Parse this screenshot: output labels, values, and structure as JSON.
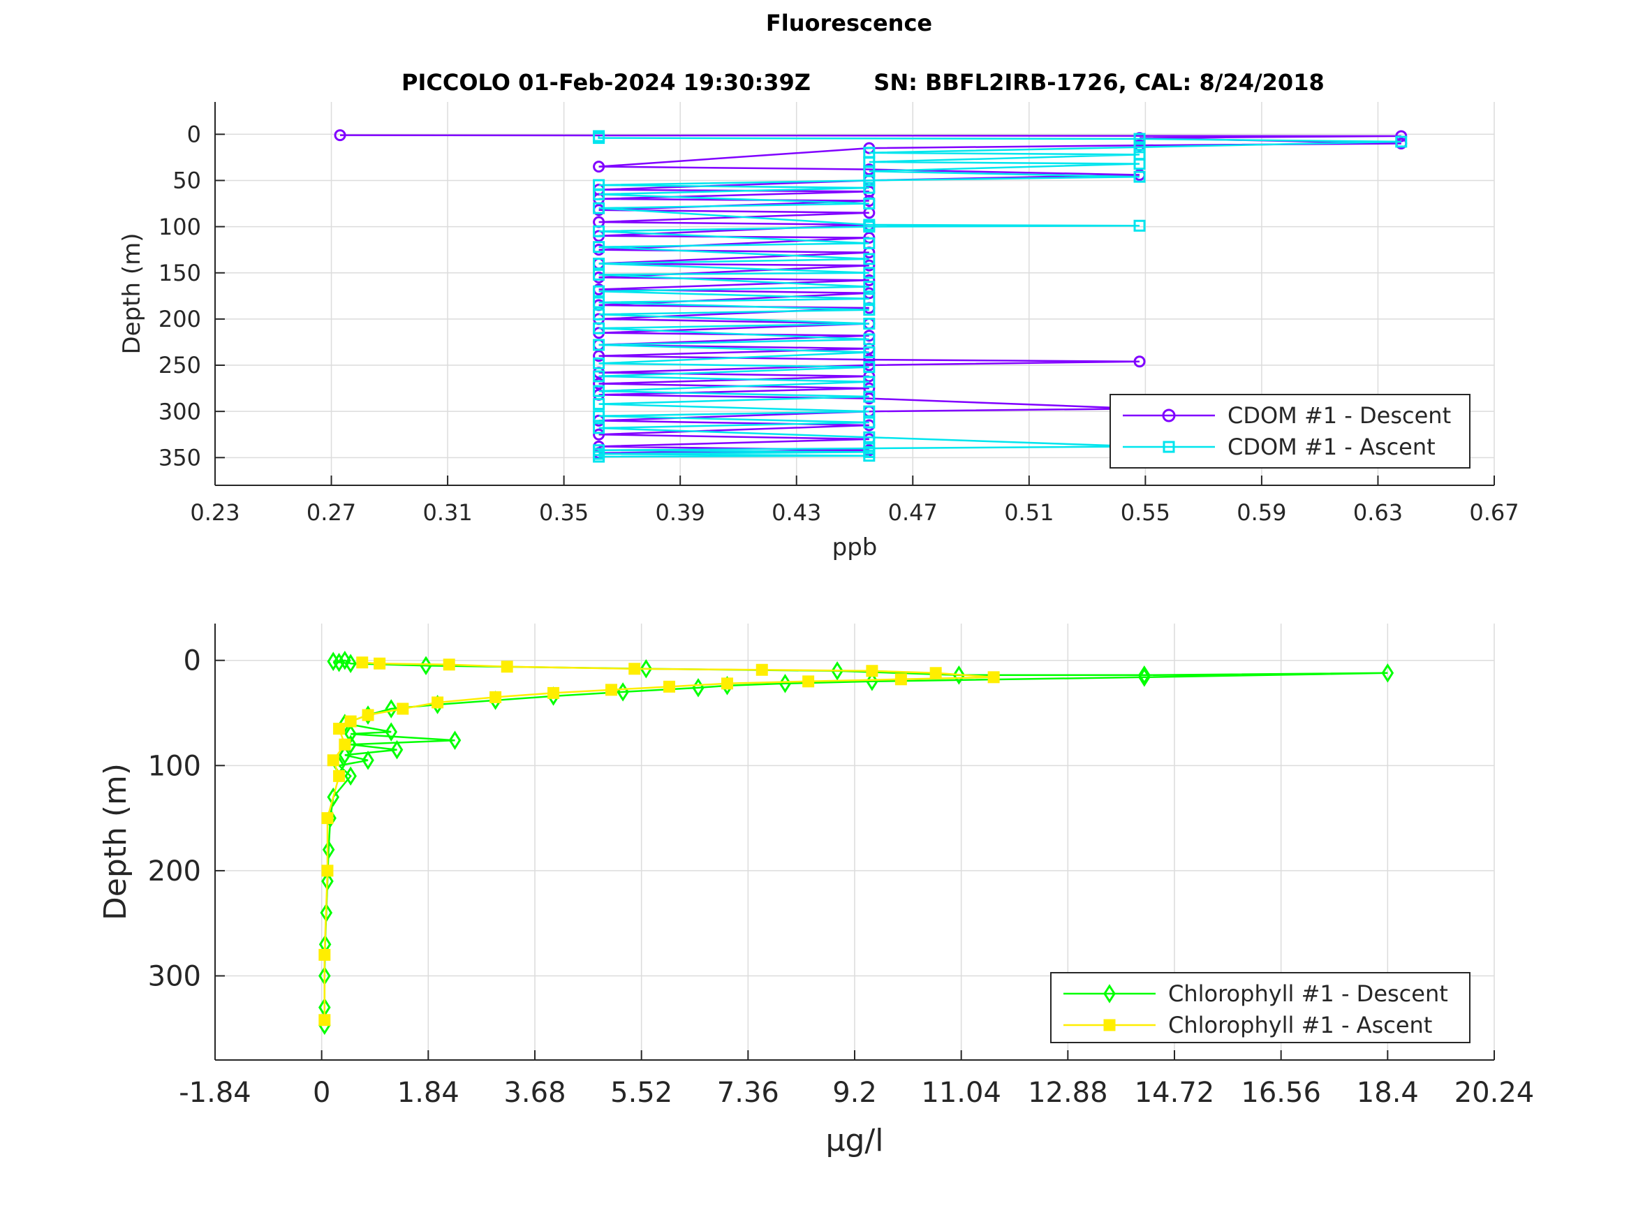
{
  "figure": {
    "suptitle": "Fluorescence",
    "subtitle_left": "PICCOLO 01-Feb-2024 19:30:39Z",
    "subtitle_right": "SN: BBFL2IRB-1726, CAL: 8/24/2018"
  },
  "chart_data": [
    {
      "type": "line",
      "xlabel": "ppb",
      "ylabel": "Depth (m)",
      "xlim": [
        0.23,
        0.67
      ],
      "ylim": [
        -35,
        380
      ],
      "y_reversed": true,
      "grid": true,
      "legend_position": "bottom-right",
      "x_ticks": [
        "0.23",
        "0.27",
        "0.31",
        "0.35",
        "0.39",
        "0.43",
        "0.47",
        "0.51",
        "0.55",
        "0.59",
        "0.63",
        "0.67"
      ],
      "y_ticks": [
        "0",
        "50",
        "100",
        "150",
        "200",
        "250",
        "300",
        "350"
      ],
      "series": [
        {
          "name": "CDOM #1 - Descent",
          "color": "#8000ff",
          "marker": "circle",
          "x": [
            0.273,
            0.638,
            0.548,
            0.638,
            0.548,
            0.455,
            0.362,
            0.455,
            0.548,
            0.455,
            0.362,
            0.455,
            0.362,
            0.455,
            0.362,
            0.455,
            0.362,
            0.455,
            0.362,
            0.455,
            0.362,
            0.455,
            0.362,
            0.455,
            0.362,
            0.455,
            0.362,
            0.455,
            0.362,
            0.455,
            0.362,
            0.455,
            0.362,
            0.455,
            0.362,
            0.455,
            0.362,
            0.455,
            0.548,
            0.455,
            0.362,
            0.455,
            0.362,
            0.455,
            0.362,
            0.455,
            0.548,
            0.455,
            0.362,
            0.455,
            0.362,
            0.455,
            0.362,
            0.455,
            0.362
          ],
          "y": [
            1,
            2,
            4,
            10,
            12,
            15,
            35,
            38,
            44,
            50,
            60,
            62,
            70,
            72,
            82,
            85,
            95,
            98,
            110,
            112,
            125,
            128,
            140,
            142,
            155,
            158,
            168,
            172,
            185,
            188,
            200,
            205,
            215,
            218,
            228,
            232,
            240,
            244,
            246,
            250,
            258,
            262,
            270,
            275,
            282,
            286,
            297,
            300,
            310,
            315,
            325,
            330,
            338,
            342,
            345
          ]
        },
        {
          "name": "CDOM #1 - Ascent",
          "color": "#00e5ee",
          "marker": "square",
          "x": [
            0.362,
            0.362,
            0.548,
            0.638,
            0.548,
            0.455,
            0.548,
            0.455,
            0.548,
            0.455,
            0.548,
            0.455,
            0.362,
            0.455,
            0.362,
            0.455,
            0.362,
            0.455,
            0.548,
            0.455,
            0.362,
            0.455,
            0.362,
            0.455,
            0.362,
            0.455,
            0.362,
            0.455,
            0.362,
            0.455,
            0.362,
            0.455,
            0.362,
            0.455,
            0.362,
            0.455,
            0.362,
            0.455,
            0.362,
            0.455,
            0.362,
            0.455,
            0.362,
            0.455,
            0.362,
            0.455,
            0.362,
            0.455,
            0.362,
            0.455,
            0.548,
            0.455,
            0.362,
            0.455,
            0.362,
            0.455,
            0.362
          ],
          "y": [
            2,
            4,
            5,
            8,
            14,
            20,
            22,
            30,
            32,
            40,
            46,
            50,
            55,
            58,
            65,
            75,
            80,
            98,
            99,
            100,
            105,
            118,
            122,
            135,
            140,
            150,
            152,
            165,
            170,
            178,
            182,
            190,
            195,
            205,
            210,
            222,
            228,
            236,
            248,
            252,
            262,
            268,
            278,
            284,
            292,
            300,
            305,
            312,
            318,
            328,
            338,
            340,
            342,
            344,
            346,
            348,
            349
          ]
        }
      ]
    },
    {
      "type": "line",
      "xlabel": "μg/l",
      "ylabel": "Depth (m)",
      "xlim": [
        -1.84,
        20.24
      ],
      "ylim": [
        -35,
        380
      ],
      "y_reversed": true,
      "grid": true,
      "legend_position": "bottom-right",
      "x_ticks": [
        "-1.84",
        "0",
        "1.84",
        "3.68",
        "5.52",
        "7.36",
        "9.2",
        "11.04",
        "12.88",
        "14.72",
        "16.56",
        "18.4",
        "20.24"
      ],
      "y_ticks": [
        "0",
        "100",
        "200",
        "300"
      ],
      "series": [
        {
          "name": "Chlorophyll #1 - Descent",
          "color": "#00ff00",
          "marker": "diamond",
          "x": [
            0.2,
            0.3,
            0.4,
            0.5,
            1.8,
            5.6,
            8.9,
            11.0,
            14.2,
            18.4,
            14.2,
            9.5,
            8.0,
            7.0,
            6.5,
            5.2,
            4.0,
            3.0,
            2.0,
            1.2,
            0.8,
            0.4,
            1.2,
            0.5,
            2.3,
            0.5,
            1.3,
            0.4,
            0.8,
            0.3,
            0.5,
            0.2,
            0.15,
            0.12,
            0.1,
            0.08,
            0.06,
            0.05,
            0.05,
            0.05
          ],
          "y": [
            1,
            2,
            0,
            3,
            5,
            8,
            10,
            14,
            14,
            12,
            16,
            20,
            22,
            24,
            26,
            30,
            34,
            38,
            42,
            46,
            52,
            60,
            68,
            70,
            76,
            80,
            85,
            90,
            95,
            100,
            110,
            130,
            150,
            180,
            210,
            240,
            270,
            300,
            330,
            347
          ]
        },
        {
          "name": "Chlorophyll #1 - Ascent",
          "color": "#ffee00",
          "marker": "square",
          "x": [
            0.7,
            1.0,
            2.2,
            3.2,
            5.4,
            7.6,
            9.5,
            10.6,
            11.6,
            10.0,
            8.4,
            7.0,
            6.0,
            5.0,
            4.0,
            3.0,
            2.0,
            1.4,
            0.8,
            0.5,
            0.3,
            0.4,
            0.2,
            0.3,
            0.1,
            0.1,
            0.05,
            0.05
          ],
          "y": [
            2,
            3,
            4,
            6,
            8,
            9,
            10,
            12,
            16,
            18,
            20,
            22,
            25,
            28,
            31,
            35,
            40,
            46,
            52,
            58,
            65,
            80,
            95,
            110,
            150,
            200,
            280,
            342
          ]
        }
      ]
    }
  ]
}
